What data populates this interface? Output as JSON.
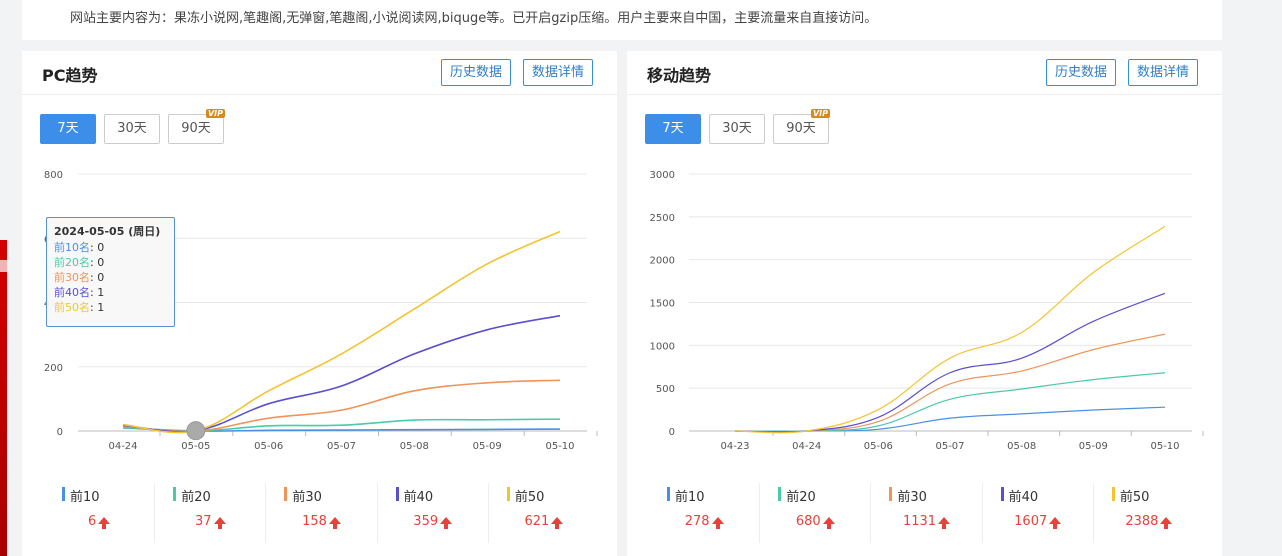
{
  "intro": "网站主要内容为：果冻小说网,笔趣阁,无弹窗,笔趣阁,小说阅读网,biquge等。已开启gzip压缩。用户主要来自中国，主要流量来自直接访问。",
  "colors": {
    "s10": "#4a90e2",
    "s20": "#4bc9a8",
    "s30": "#f0935a",
    "s40": "#5a4fcf",
    "s50": "#f3c430",
    "up": "#e8413a",
    "accent": "#3d8ee8"
  },
  "pc": {
    "title": "PC趋势",
    "history_btn": "历史数据",
    "detail_btn": "数据详情",
    "ranges": [
      "7天",
      "30天",
      "90天"
    ],
    "vip_badge": "VIP",
    "stats": [
      {
        "label": "前10",
        "value": "6"
      },
      {
        "label": "前20",
        "value": "37"
      },
      {
        "label": "前30",
        "value": "158"
      },
      {
        "label": "前40",
        "value": "359"
      },
      {
        "label": "前50",
        "value": "621"
      }
    ],
    "tooltip": {
      "date": "2024-05-05 (周日)",
      "rows": [
        {
          "label": "前10名",
          "value": "0"
        },
        {
          "label": "前20名",
          "value": "0"
        },
        {
          "label": "前30名",
          "value": "0"
        },
        {
          "label": "前40名",
          "value": "1"
        },
        {
          "label": "前50名",
          "value": "1"
        }
      ]
    }
  },
  "mobile": {
    "title": "移动趋势",
    "history_btn": "历史数据",
    "detail_btn": "数据详情",
    "ranges": [
      "7天",
      "30天",
      "90天"
    ],
    "vip_badge": "VIP",
    "stats": [
      {
        "label": "前10",
        "value": "278"
      },
      {
        "label": "前20",
        "value": "680"
      },
      {
        "label": "前30",
        "value": "1131"
      },
      {
        "label": "前40",
        "value": "1607"
      },
      {
        "label": "前50",
        "value": "2388"
      }
    ]
  },
  "chart_data": [
    {
      "type": "line",
      "categories": [
        "04-24",
        "05-05",
        "05-06",
        "05-07",
        "05-08",
        "05-09",
        "05-10"
      ],
      "yticks": [
        0,
        200,
        400,
        600,
        800
      ],
      "ylim": [
        0,
        800
      ],
      "grid": true,
      "series": [
        {
          "name": "前10",
          "values": [
            10,
            0,
            2,
            3,
            4,
            5,
            6
          ]
        },
        {
          "name": "前20",
          "values": [
            12,
            0,
            16,
            18,
            34,
            35,
            37
          ]
        },
        {
          "name": "前30",
          "values": [
            15,
            0,
            40,
            65,
            125,
            150,
            158
          ]
        },
        {
          "name": "前40",
          "values": [
            18,
            1,
            85,
            140,
            240,
            315,
            359
          ]
        },
        {
          "name": "前50",
          "values": [
            20,
            1,
            125,
            240,
            380,
            520,
            621
          ]
        }
      ]
    },
    {
      "type": "line",
      "categories": [
        "04-23",
        "04-24",
        "05-06",
        "05-07",
        "05-08",
        "05-09",
        "05-10"
      ],
      "yticks": [
        0,
        500,
        1000,
        1500,
        2000,
        2500,
        3000
      ],
      "ylim": [
        0,
        3000
      ],
      "grid": true,
      "series": [
        {
          "name": "前10",
          "values": [
            0,
            0,
            20,
            150,
            200,
            245,
            278
          ]
        },
        {
          "name": "前20",
          "values": [
            0,
            0,
            60,
            370,
            490,
            600,
            680
          ]
        },
        {
          "name": "前30",
          "values": [
            0,
            0,
            110,
            550,
            700,
            950,
            1131
          ]
        },
        {
          "name": "前40",
          "values": [
            0,
            0,
            160,
            680,
            850,
            1280,
            1607
          ]
        },
        {
          "name": "前50",
          "values": [
            0,
            0,
            250,
            850,
            1150,
            1850,
            2388
          ]
        }
      ]
    }
  ]
}
